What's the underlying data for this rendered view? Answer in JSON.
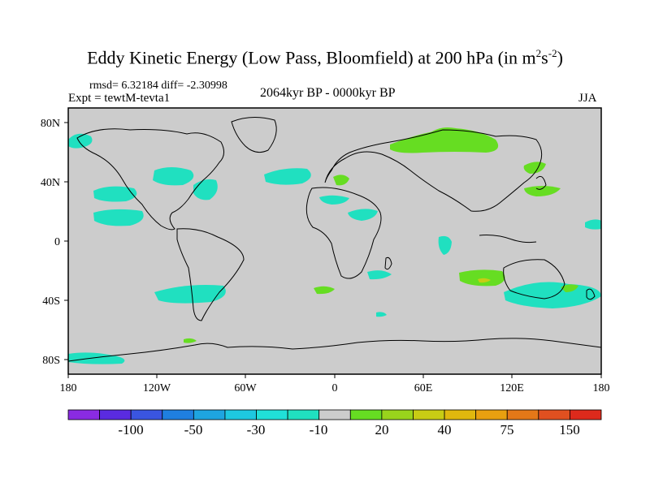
{
  "title": {
    "main": "Eddy Kinetic Energy (Low Pass, Bloomfield) at 200 hPa (in m",
    "sup1": "2",
    "mid": "s",
    "sup2": "-2",
    "end": ")"
  },
  "stats": {
    "rmsd_diff": "rmsd= 6.32184 diff= -2.30998"
  },
  "experiment": "Expt = tewtM-tevta1",
  "period": "2064kyr BP - 0000kyr BP",
  "season": "JJA",
  "axes": {
    "x_ticks": [
      "180",
      "120W",
      "60W",
      "0",
      "60E",
      "120E",
      "180"
    ],
    "y_ticks": [
      "80N",
      "40N",
      "0",
      "40S",
      "80S"
    ]
  },
  "colorbar": {
    "colors": [
      "#8a2be2",
      "#5a2be0",
      "#3a55e0",
      "#1f7fe0",
      "#1ea5e0",
      "#1ec8e0",
      "#20e0d8",
      "#20e0c0",
      "#cccccc",
      "#66dd22",
      "#99d41c",
      "#c8cc14",
      "#e0b80e",
      "#e8a010",
      "#e47818",
      "#e05020",
      "#dd2a1c"
    ],
    "labels": [
      "-100",
      "-50",
      "-30",
      "-10",
      "20",
      "40",
      "75",
      "150"
    ]
  },
  "legend_colors": {
    "background": "#cccccc",
    "negative_anomaly": "#20e0c0",
    "positive_anomaly": "#66dd22",
    "strong_positive": "#c8cc14"
  }
}
